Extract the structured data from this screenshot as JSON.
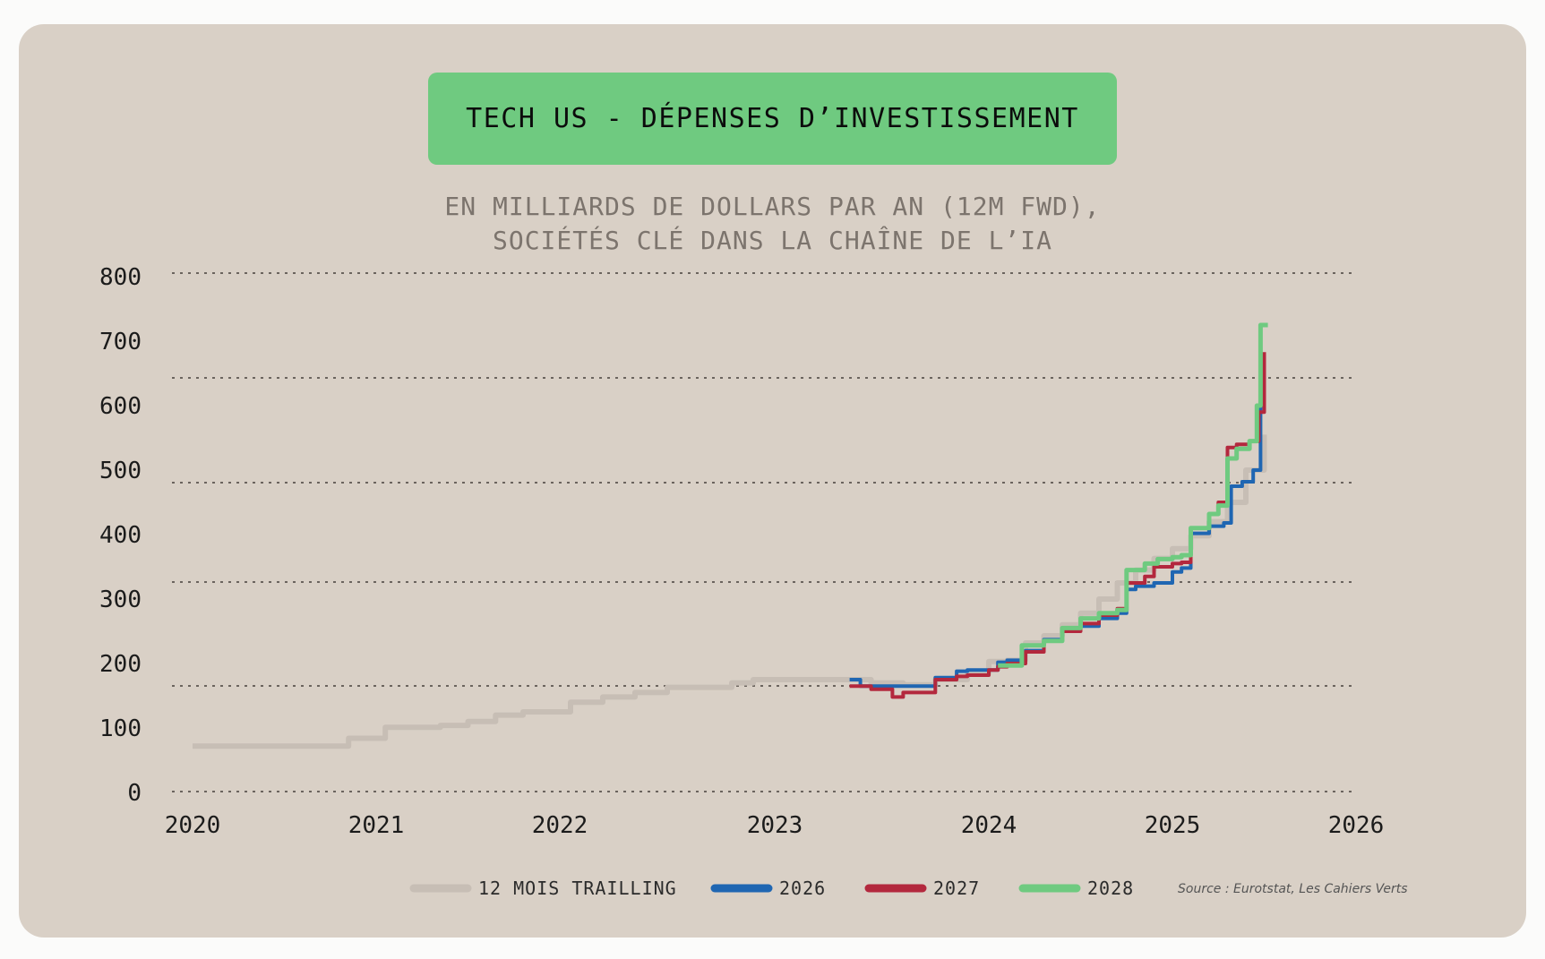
{
  "title": "TECH US - DÉPENSES D’INVESTISSEMENT",
  "subtitle_lines": [
    "EN MILLIARDS DE DOLLARS PAR AN (12M FWD),",
    "SOCIÉTÉS CLÉ DANS LA CHAÎNE DE L’IA"
  ],
  "source": "Source : Eurotstat, Les Cahiers Verts",
  "colors": {
    "card_background": "#d9d0c6",
    "title_background": "#6fca80",
    "trailing": "#c7beb5",
    "s2026": "#1f66b2",
    "s2027": "#b3283d",
    "s2028": "#6fca80"
  },
  "chart_data": {
    "type": "line",
    "title": "TECH US - DÉPENSES D’INVESTISSEMENT",
    "subtitle": "EN MILLIARDS DE DOLLARS PAR AN (12M FWD), SOCIÉTÉS CLÉ DANS LA CHAÎNE DE L’IA",
    "xlim": [
      2020,
      2026
    ],
    "ylim": [
      0,
      800
    ],
    "x_ticks": [
      "2020",
      "2021",
      "2022",
      "2023",
      "2024",
      "2025",
      "2026"
    ],
    "y_ticks": [
      "0",
      "100",
      "200",
      "300",
      "400",
      "500",
      "600",
      "700",
      "800"
    ],
    "grid": "horizontal dotted",
    "legend_position": "bottom",
    "series": [
      {
        "name": "12 MOIS TRAILLING",
        "color": "#c7beb5",
        "points": [
          [
            2020.0,
            72
          ],
          [
            2020.3,
            72
          ],
          [
            2020.6,
            72
          ],
          [
            2020.75,
            72
          ],
          [
            2020.85,
            84
          ],
          [
            2020.95,
            84
          ],
          [
            2021.05,
            101
          ],
          [
            2021.25,
            101
          ],
          [
            2021.35,
            104
          ],
          [
            2021.5,
            110
          ],
          [
            2021.65,
            120
          ],
          [
            2021.8,
            125
          ],
          [
            2021.95,
            125
          ],
          [
            2022.05,
            140
          ],
          [
            2022.2,
            148
          ],
          [
            2022.35,
            155
          ],
          [
            2022.5,
            163
          ],
          [
            2022.7,
            163
          ],
          [
            2022.8,
            170
          ],
          [
            2022.9,
            175
          ],
          [
            2023.0,
            175
          ],
          [
            2023.15,
            175
          ],
          [
            2023.3,
            175
          ],
          [
            2023.45,
            170
          ],
          [
            2023.6,
            167
          ],
          [
            2023.75,
            175
          ],
          [
            2023.9,
            185
          ],
          [
            2024.0,
            203
          ],
          [
            2024.1,
            205
          ],
          [
            2024.2,
            232
          ],
          [
            2024.3,
            243
          ],
          [
            2024.4,
            260
          ],
          [
            2024.5,
            278
          ],
          [
            2024.6,
            300
          ],
          [
            2024.7,
            325
          ],
          [
            2024.8,
            345
          ],
          [
            2024.9,
            363
          ],
          [
            2025.0,
            378
          ],
          [
            2025.1,
            398
          ],
          [
            2025.2,
            420
          ],
          [
            2025.3,
            450
          ],
          [
            2025.4,
            500
          ],
          [
            2025.5,
            555
          ]
        ]
      },
      {
        "name": "2026",
        "color": "#1f66b2",
        "points": [
          [
            2023.35,
            175
          ],
          [
            2023.4,
            165
          ],
          [
            2023.7,
            165
          ],
          [
            2023.75,
            178
          ],
          [
            2023.85,
            188
          ],
          [
            2023.9,
            190
          ],
          [
            2024.0,
            190
          ],
          [
            2024.05,
            202
          ],
          [
            2024.1,
            205
          ],
          [
            2024.2,
            220
          ],
          [
            2024.3,
            237
          ],
          [
            2024.4,
            255
          ],
          [
            2024.5,
            258
          ],
          [
            2024.6,
            270
          ],
          [
            2024.7,
            278
          ],
          [
            2024.75,
            315
          ],
          [
            2024.8,
            320
          ],
          [
            2024.9,
            325
          ],
          [
            2025.0,
            342
          ],
          [
            2025.05,
            348
          ],
          [
            2025.1,
            402
          ],
          [
            2025.2,
            413
          ],
          [
            2025.28,
            418
          ],
          [
            2025.32,
            475
          ],
          [
            2025.38,
            482
          ],
          [
            2025.44,
            500
          ],
          [
            2025.48,
            610
          ]
        ]
      },
      {
        "name": "2027",
        "color": "#b3283d",
        "points": [
          [
            2023.35,
            165
          ],
          [
            2023.45,
            160
          ],
          [
            2023.55,
            148
          ],
          [
            2023.6,
            155
          ],
          [
            2023.7,
            155
          ],
          [
            2023.75,
            175
          ],
          [
            2023.85,
            180
          ],
          [
            2023.9,
            182
          ],
          [
            2024.0,
            190
          ],
          [
            2024.05,
            195
          ],
          [
            2024.1,
            200
          ],
          [
            2024.2,
            218
          ],
          [
            2024.3,
            235
          ],
          [
            2024.4,
            250
          ],
          [
            2024.5,
            262
          ],
          [
            2024.6,
            275
          ],
          [
            2024.7,
            285
          ],
          [
            2024.75,
            325
          ],
          [
            2024.85,
            335
          ],
          [
            2024.9,
            350
          ],
          [
            2025.0,
            355
          ],
          [
            2025.05,
            357
          ],
          [
            2025.1,
            410
          ],
          [
            2025.2,
            432
          ],
          [
            2025.25,
            450
          ],
          [
            2025.3,
            535
          ],
          [
            2025.35,
            540
          ],
          [
            2025.42,
            545
          ],
          [
            2025.47,
            590
          ],
          [
            2025.5,
            683
          ]
        ]
      },
      {
        "name": "2028",
        "color": "#6fca80",
        "points": [
          [
            2024.05,
            197
          ],
          [
            2024.15,
            197
          ],
          [
            2024.18,
            228
          ],
          [
            2024.3,
            235
          ],
          [
            2024.4,
            255
          ],
          [
            2024.5,
            270
          ],
          [
            2024.6,
            278
          ],
          [
            2024.7,
            283
          ],
          [
            2024.75,
            345
          ],
          [
            2024.85,
            355
          ],
          [
            2024.92,
            362
          ],
          [
            2025.0,
            365
          ],
          [
            2025.05,
            368
          ],
          [
            2025.1,
            410
          ],
          [
            2025.2,
            432
          ],
          [
            2025.25,
            445
          ],
          [
            2025.3,
            518
          ],
          [
            2025.35,
            533
          ],
          [
            2025.42,
            545
          ],
          [
            2025.46,
            600
          ],
          [
            2025.48,
            725
          ],
          [
            2025.52,
            725
          ]
        ]
      }
    ]
  }
}
